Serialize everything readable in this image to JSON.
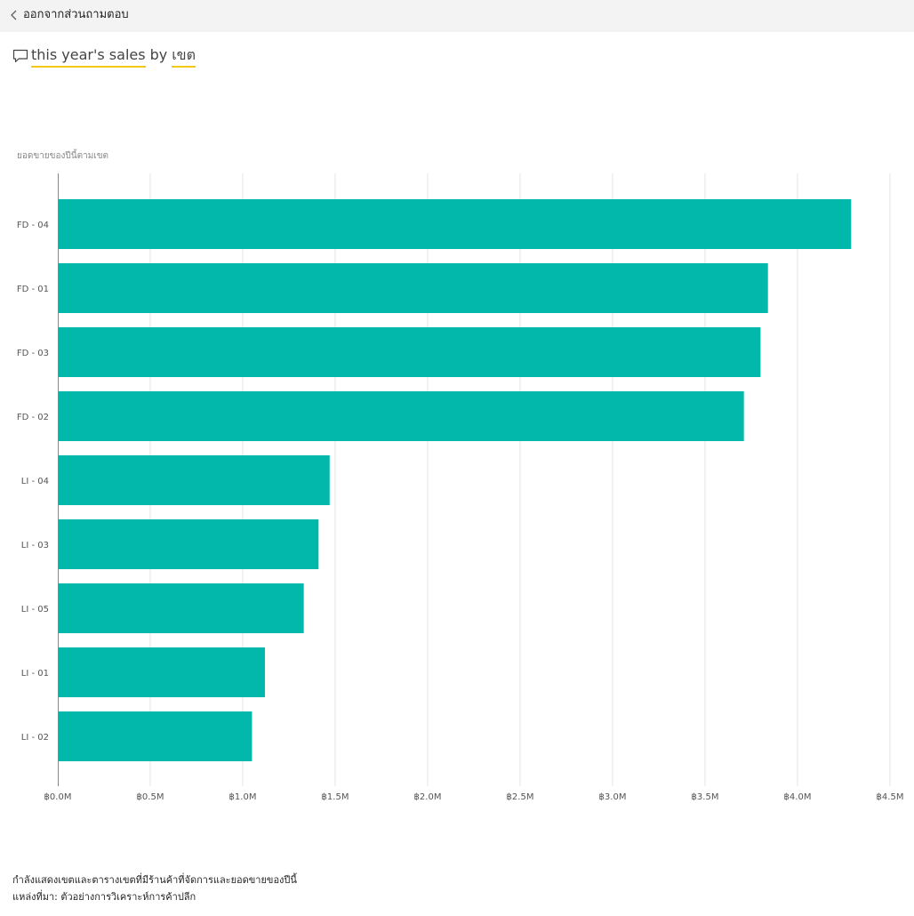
{
  "header": {
    "back_label": "ออกจากส่วนถามตอบ"
  },
  "question": {
    "term1": "this year's sales",
    "connector": "by",
    "term2": "เขต"
  },
  "footer": {
    "line1": "กำลังแสดงเขตและตารางเขตที่มีร้านค้าที่จัดการและยอดขายของปีนี้",
    "line2": "แหล่งที่มา: ตัวอย่างการวิเคราะห์การค้าปลีก"
  },
  "colors": {
    "bar": "#01b8aa",
    "accent_underline": "#f2c811"
  },
  "chart_data": {
    "type": "bar",
    "orientation": "horizontal",
    "title": "ยอดขายของปีนี้ตามเขต",
    "categories": [
      "FD - 04",
      "FD - 01",
      "FD - 03",
      "FD - 02",
      "LI - 04",
      "LI - 03",
      "LI - 05",
      "LI - 01",
      "LI - 02"
    ],
    "values": [
      4.29,
      3.84,
      3.8,
      3.71,
      1.47,
      1.41,
      1.33,
      1.12,
      1.05
    ],
    "value_unit": "M",
    "xlim": [
      0,
      4.5
    ],
    "ticks": [
      0,
      0.5,
      1.0,
      1.5,
      2.0,
      2.5,
      3.0,
      3.5,
      4.0,
      4.5
    ],
    "tick_labels": [
      "฿0.0M",
      "฿0.5M",
      "฿1.0M",
      "฿1.5M",
      "฿2.0M",
      "฿2.5M",
      "฿3.0M",
      "฿3.5M",
      "฿4.0M",
      "฿4.5M"
    ],
    "grid": true,
    "legend": "none"
  }
}
